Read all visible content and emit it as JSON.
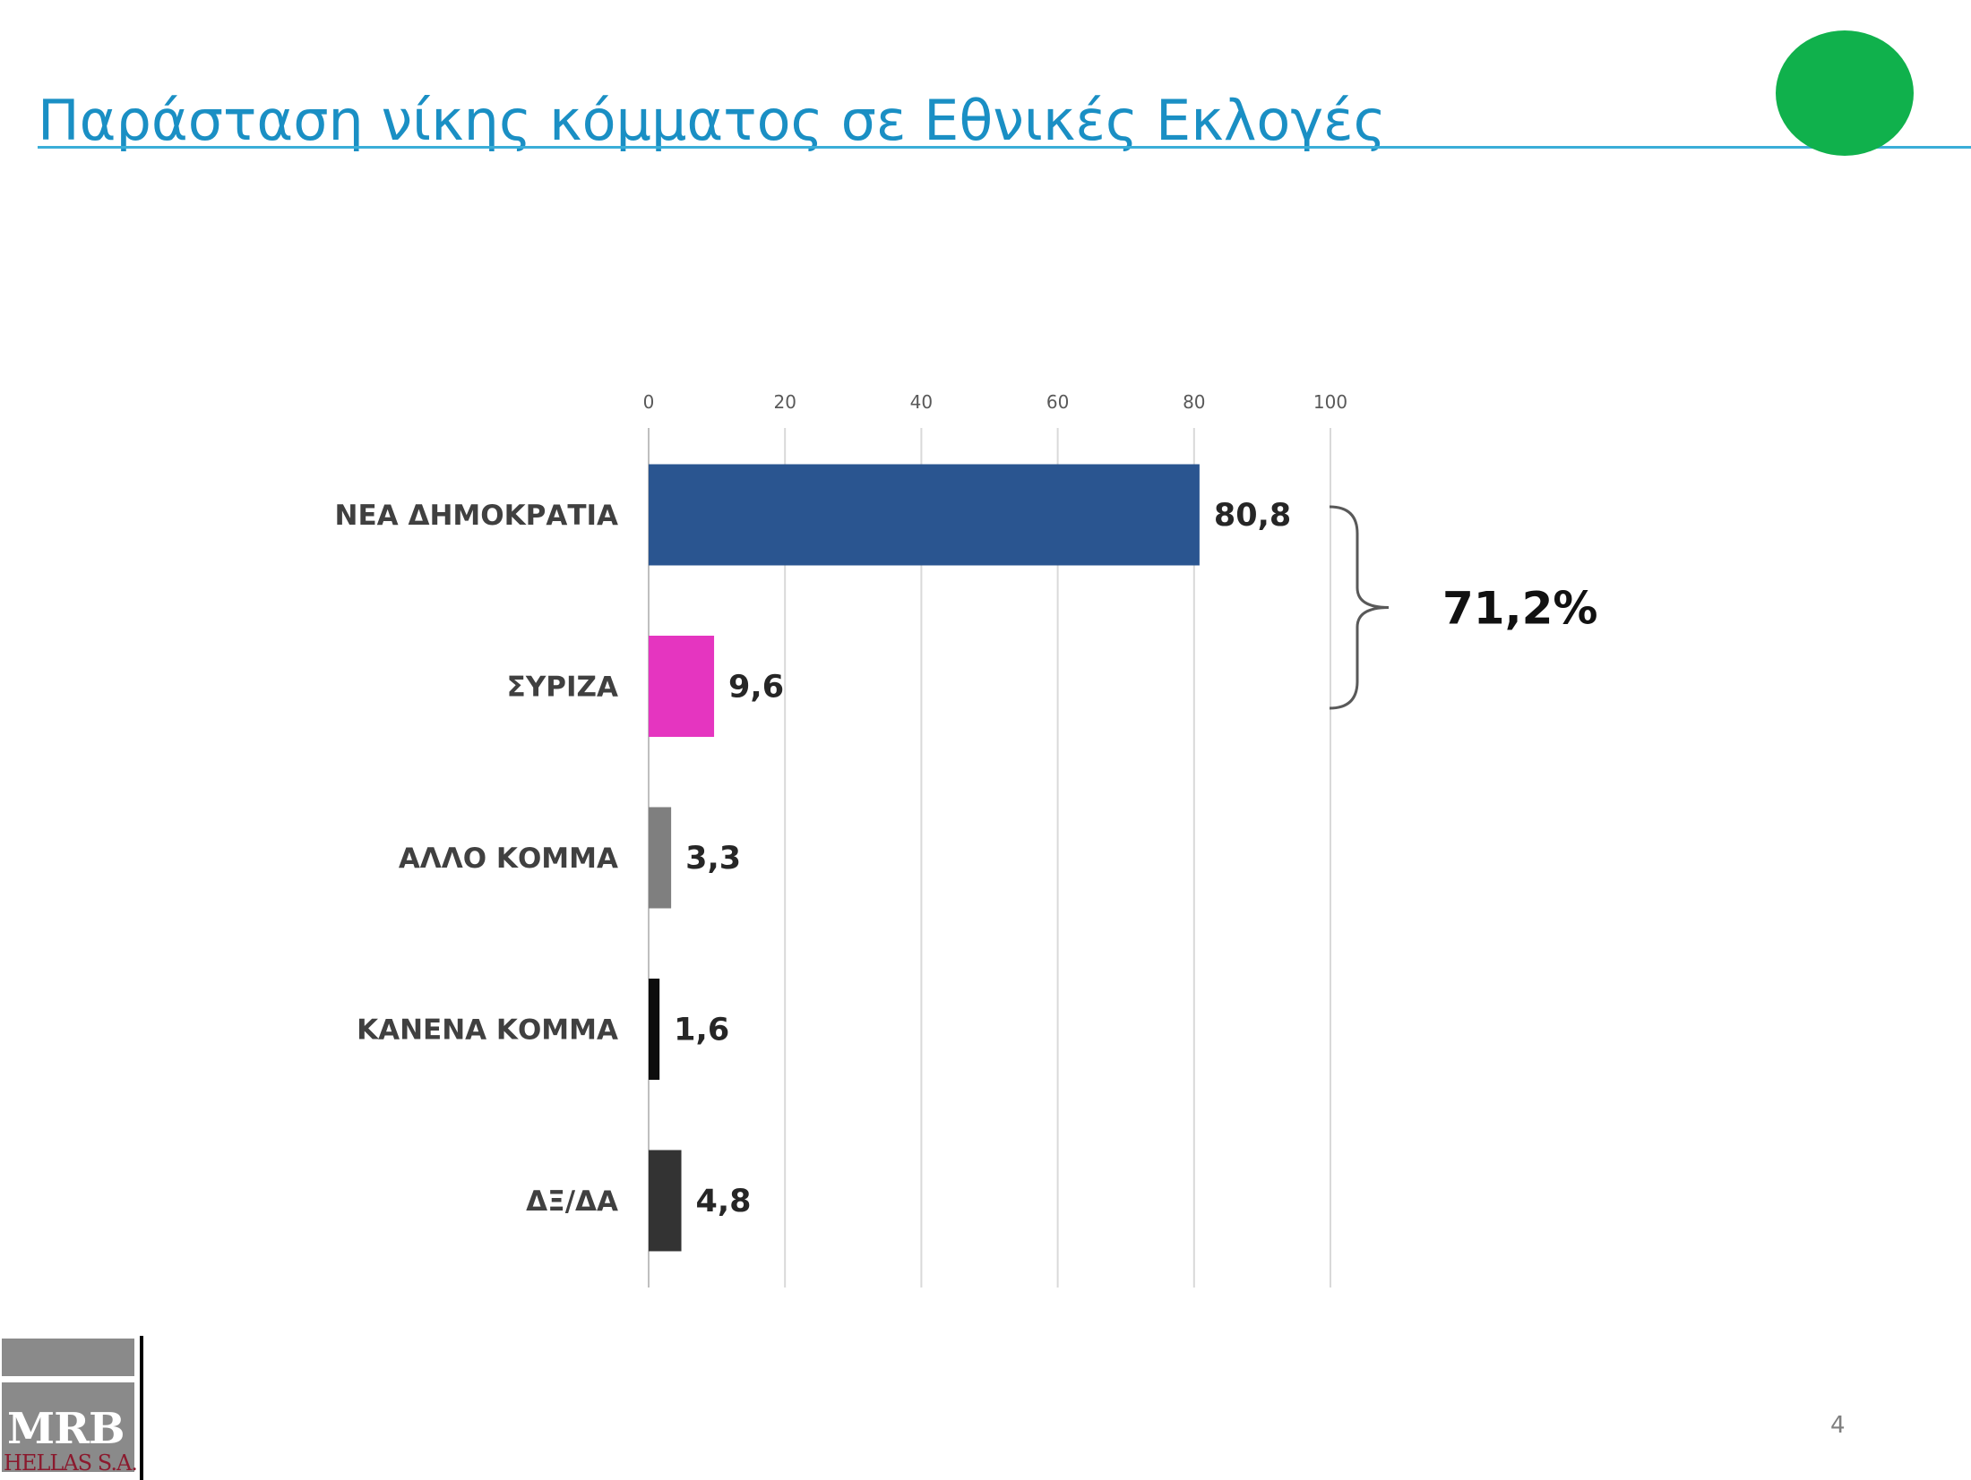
{
  "slide": {
    "title": "Παράσταση νίκης κόμματος σε Εθνικές Εκλογές",
    "page_number": "4",
    "status_dot_color": "#10b14c"
  },
  "logo": {
    "name": "MRB",
    "subtitle": "HELLAS S.A."
  },
  "chart_data": {
    "type": "bar",
    "orientation": "horizontal",
    "title": "",
    "xlabel": "",
    "ylabel": "",
    "xlim": [
      0,
      100
    ],
    "x_ticks": [
      0,
      20,
      40,
      60,
      80,
      100
    ],
    "x_axis_position": "top",
    "grid": true,
    "categories": [
      "ΝΕΑ ΔΗΜΟΚΡΑΤΙΑ",
      "ΣΥΡΙΖΑ",
      "ΑΛΛΟ ΚΟΜΜΑ",
      "ΚΑΝΕΝΑ ΚΟΜΜΑ",
      "ΔΞ/ΔΑ"
    ],
    "values": [
      80.8,
      9.6,
      3.3,
      1.6,
      4.8
    ],
    "value_labels": [
      "80,8",
      "9,6",
      "3,3",
      "1,6",
      "4,8"
    ],
    "colors": [
      "#2a5590",
      "#e535c0",
      "#7f7f7f",
      "#0d0d0d",
      "#333333"
    ],
    "annotation": {
      "text": "71,2%",
      "type": "brace",
      "spans_categories": [
        "ΝΕΑ ΔΗΜΟΚΡΑΤΙΑ",
        "ΣΥΡΙΖΑ"
      ]
    }
  }
}
